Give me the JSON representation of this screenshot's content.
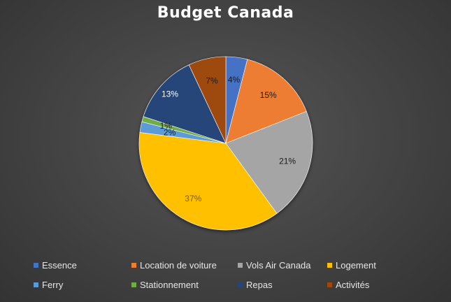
{
  "chart_data": {
    "type": "pie",
    "title": "Budget Canada",
    "slices": [
      {
        "label": "Essence",
        "value": 4,
        "display": "4%",
        "color": "#4472C4"
      },
      {
        "label": "Location de voiture",
        "value": 15,
        "display": "15%",
        "color": "#ED7D31"
      },
      {
        "label": "Vols Air Canada",
        "value": 21,
        "display": "21%",
        "color": "#A5A5A5"
      },
      {
        "label": "Logement",
        "value": 37,
        "display": "37%",
        "color": "#FFC000"
      },
      {
        "label": "Ferry",
        "value": 2,
        "display": "2%",
        "color": "#5B9BD5"
      },
      {
        "label": "Stationnement",
        "value": 1,
        "display": "1%",
        "color": "#70AD47"
      },
      {
        "label": "Repas",
        "value": 13,
        "display": "13%",
        "color": "#264478"
      },
      {
        "label": "Activités",
        "value": 7,
        "display": "7%",
        "color": "#9E480E"
      }
    ],
    "legend_position": "bottom"
  }
}
